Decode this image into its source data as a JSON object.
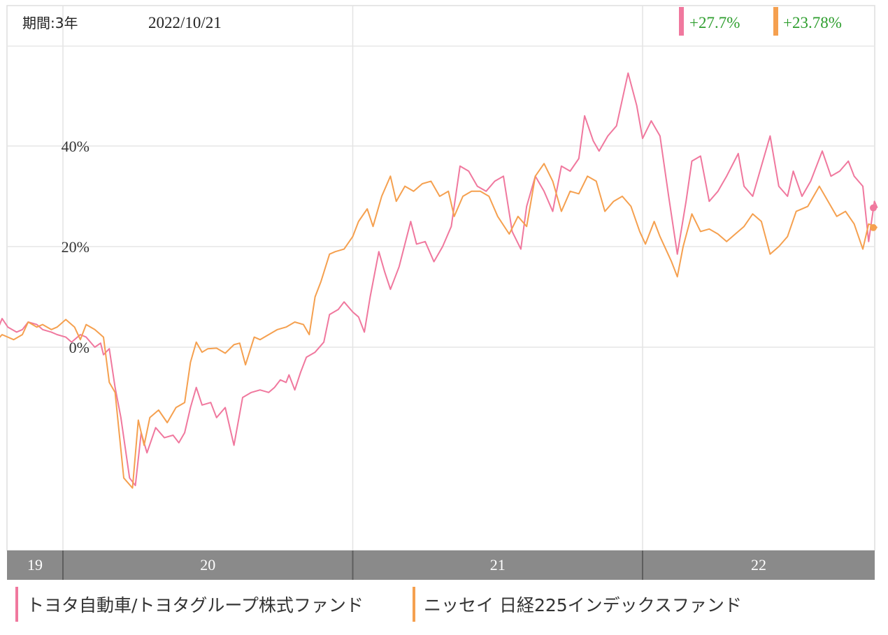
{
  "header": {
    "period_label": "期間:3年",
    "date": "2022/10/21",
    "returns": [
      {
        "value": "+27.7%",
        "color": "#f0789e"
      },
      {
        "value": "+23.78%",
        "color": "#f5a04f"
      }
    ]
  },
  "colors": {
    "series_1": "#f0789e",
    "series_2": "#f5a04f",
    "positive_text": "#2e9e2e",
    "axis_band": "#8a8a8a",
    "grid": "#e6e6e6"
  },
  "chart_data": {
    "type": "line",
    "y_unit": "%",
    "ylim": [
      -45,
      60
    ],
    "y_ticks": [
      {
        "value": 40,
        "label": "40%"
      },
      {
        "value": 20,
        "label": "20%"
      },
      {
        "value": 0,
        "label": "0%"
      }
    ],
    "x_range": [
      2019.75,
      2022.81
    ],
    "x_ticks": [
      {
        "value": 2019.75,
        "label": "19"
      },
      {
        "value": 2020.0,
        "label": "20"
      },
      {
        "value": 2021.0,
        "label": "21"
      },
      {
        "value": 2022.0,
        "label": "22"
      }
    ],
    "grid": true,
    "series": [
      {
        "name": "トヨタ自動車/トヨタグループ株式ファンド",
        "color": "#f0789e",
        "points": [
          [
            2019.75,
            0
          ],
          [
            2019.79,
            5.7
          ],
          [
            2019.81,
            4
          ],
          [
            2019.84,
            3
          ],
          [
            2019.86,
            3.5
          ],
          [
            2019.88,
            5
          ],
          [
            2019.91,
            4.5
          ],
          [
            2019.93,
            3.5
          ],
          [
            2019.96,
            3
          ],
          [
            2019.98,
            2.5
          ],
          [
            2020.01,
            2
          ],
          [
            2020.03,
            1
          ],
          [
            2020.06,
            2.5
          ],
          [
            2020.08,
            2
          ],
          [
            2020.11,
            0
          ],
          [
            2020.13,
            0.8
          ],
          [
            2020.14,
            -1.5
          ],
          [
            2020.16,
            -0.3
          ],
          [
            2020.18,
            -8
          ],
          [
            2020.2,
            -14
          ],
          [
            2020.23,
            -26
          ],
          [
            2020.25,
            -27.5
          ],
          [
            2020.27,
            -17
          ],
          [
            2020.29,
            -21
          ],
          [
            2020.32,
            -16
          ],
          [
            2020.35,
            -18
          ],
          [
            2020.38,
            -17.5
          ],
          [
            2020.4,
            -19
          ],
          [
            2020.42,
            -17
          ],
          [
            2020.44,
            -12
          ],
          [
            2020.46,
            -8
          ],
          [
            2020.48,
            -11.5
          ],
          [
            2020.51,
            -11
          ],
          [
            2020.53,
            -14
          ],
          [
            2020.56,
            -12
          ],
          [
            2020.59,
            -19.5
          ],
          [
            2020.62,
            -10
          ],
          [
            2020.65,
            -9
          ],
          [
            2020.68,
            -8.5
          ],
          [
            2020.71,
            -9
          ],
          [
            2020.73,
            -8
          ],
          [
            2020.75,
            -6.5
          ],
          [
            2020.77,
            -7
          ],
          [
            2020.78,
            -5.5
          ],
          [
            2020.8,
            -8.5
          ],
          [
            2020.82,
            -5
          ],
          [
            2020.84,
            -2
          ],
          [
            2020.87,
            -1
          ],
          [
            2020.9,
            1
          ],
          [
            2020.92,
            6.5
          ],
          [
            2020.95,
            7.5
          ],
          [
            2020.97,
            9
          ],
          [
            2021.0,
            7
          ],
          [
            2021.02,
            6
          ],
          [
            2021.04,
            3
          ],
          [
            2021.06,
            10
          ],
          [
            2021.09,
            19
          ],
          [
            2021.11,
            15
          ],
          [
            2021.13,
            11.5
          ],
          [
            2021.16,
            16
          ],
          [
            2021.2,
            25
          ],
          [
            2021.22,
            20.5
          ],
          [
            2021.25,
            21
          ],
          [
            2021.28,
            17
          ],
          [
            2021.31,
            20
          ],
          [
            2021.34,
            24
          ],
          [
            2021.37,
            36
          ],
          [
            2021.4,
            35
          ],
          [
            2021.43,
            32
          ],
          [
            2021.46,
            31
          ],
          [
            2021.49,
            33
          ],
          [
            2021.52,
            34
          ],
          [
            2021.55,
            23
          ],
          [
            2021.58,
            19.5
          ],
          [
            2021.6,
            28
          ],
          [
            2021.63,
            34
          ],
          [
            2021.66,
            31
          ],
          [
            2021.69,
            27
          ],
          [
            2021.72,
            36
          ],
          [
            2021.75,
            35
          ],
          [
            2021.78,
            37.5
          ],
          [
            2021.8,
            46
          ],
          [
            2021.83,
            41
          ],
          [
            2021.85,
            39
          ],
          [
            2021.88,
            42
          ],
          [
            2021.91,
            44
          ],
          [
            2021.95,
            54.5
          ],
          [
            2021.98,
            48
          ],
          [
            2022.0,
            41.5
          ],
          [
            2022.03,
            45
          ],
          [
            2022.06,
            42
          ],
          [
            2022.09,
            30
          ],
          [
            2022.12,
            18.5
          ],
          [
            2022.15,
            29
          ],
          [
            2022.17,
            37
          ],
          [
            2022.2,
            38
          ],
          [
            2022.23,
            29
          ],
          [
            2022.26,
            31
          ],
          [
            2022.29,
            34
          ],
          [
            2022.33,
            38.5
          ],
          [
            2022.35,
            32
          ],
          [
            2022.38,
            30
          ],
          [
            2022.41,
            36
          ],
          [
            2022.44,
            42
          ],
          [
            2022.47,
            32
          ],
          [
            2022.5,
            30
          ],
          [
            2022.52,
            35
          ],
          [
            2022.55,
            30
          ],
          [
            2022.58,
            33
          ],
          [
            2022.62,
            39
          ],
          [
            2022.65,
            34
          ],
          [
            2022.68,
            35
          ],
          [
            2022.71,
            37
          ],
          [
            2022.73,
            34
          ],
          [
            2022.76,
            32
          ],
          [
            2022.78,
            21
          ],
          [
            2022.8,
            29
          ],
          [
            2022.81,
            27.7
          ]
        ]
      },
      {
        "name": "ニッセイ 日経225インデックスファンド",
        "color": "#f5a04f",
        "points": [
          [
            2019.75,
            0
          ],
          [
            2019.79,
            2.5
          ],
          [
            2019.83,
            1.5
          ],
          [
            2019.86,
            2.5
          ],
          [
            2019.88,
            5
          ],
          [
            2019.91,
            4
          ],
          [
            2019.93,
            4.5
          ],
          [
            2019.96,
            3.5
          ],
          [
            2019.98,
            4
          ],
          [
            2020.01,
            5.5
          ],
          [
            2020.04,
            4
          ],
          [
            2020.06,
            1.5
          ],
          [
            2020.08,
            4.5
          ],
          [
            2020.11,
            3.5
          ],
          [
            2020.14,
            2
          ],
          [
            2020.16,
            -7
          ],
          [
            2020.18,
            -9
          ],
          [
            2020.21,
            -26
          ],
          [
            2020.24,
            -28
          ],
          [
            2020.26,
            -14.5
          ],
          [
            2020.28,
            -19.5
          ],
          [
            2020.3,
            -14
          ],
          [
            2020.33,
            -12.5
          ],
          [
            2020.36,
            -15
          ],
          [
            2020.39,
            -12
          ],
          [
            2020.42,
            -11
          ],
          [
            2020.44,
            -3
          ],
          [
            2020.46,
            1
          ],
          [
            2020.48,
            -1
          ],
          [
            2020.5,
            -0.3
          ],
          [
            2020.53,
            -0.2
          ],
          [
            2020.56,
            -1.2
          ],
          [
            2020.59,
            0.5
          ],
          [
            2020.61,
            0.8
          ],
          [
            2020.63,
            -3.5
          ],
          [
            2020.66,
            2
          ],
          [
            2020.68,
            1.5
          ],
          [
            2020.71,
            2.5
          ],
          [
            2020.74,
            3.5
          ],
          [
            2020.77,
            4
          ],
          [
            2020.8,
            5
          ],
          [
            2020.83,
            4.5
          ],
          [
            2020.85,
            2.5
          ],
          [
            2020.87,
            10
          ],
          [
            2020.89,
            13
          ],
          [
            2020.92,
            18.5
          ],
          [
            2020.94,
            19
          ],
          [
            2020.97,
            19.5
          ],
          [
            2021.0,
            22
          ],
          [
            2021.02,
            25
          ],
          [
            2021.05,
            27.5
          ],
          [
            2021.07,
            24
          ],
          [
            2021.1,
            30
          ],
          [
            2021.13,
            34
          ],
          [
            2021.15,
            29
          ],
          [
            2021.18,
            32
          ],
          [
            2021.21,
            31
          ],
          [
            2021.24,
            32.5
          ],
          [
            2021.27,
            33
          ],
          [
            2021.3,
            30
          ],
          [
            2021.33,
            31
          ],
          [
            2021.35,
            26
          ],
          [
            2021.38,
            30
          ],
          [
            2021.41,
            31
          ],
          [
            2021.44,
            31
          ],
          [
            2021.47,
            30
          ],
          [
            2021.5,
            26
          ],
          [
            2021.54,
            22.5
          ],
          [
            2021.57,
            26
          ],
          [
            2021.6,
            24
          ],
          [
            2021.63,
            34
          ],
          [
            2021.66,
            36.5
          ],
          [
            2021.69,
            33
          ],
          [
            2021.72,
            27
          ],
          [
            2021.75,
            31
          ],
          [
            2021.78,
            30.5
          ],
          [
            2021.81,
            34
          ],
          [
            2021.84,
            33
          ],
          [
            2021.87,
            27
          ],
          [
            2021.9,
            29
          ],
          [
            2021.93,
            30
          ],
          [
            2021.96,
            28
          ],
          [
            2021.99,
            23
          ],
          [
            2022.01,
            20.5
          ],
          [
            2022.04,
            25
          ],
          [
            2022.06,
            22
          ],
          [
            2022.1,
            17
          ],
          [
            2022.12,
            14
          ],
          [
            2022.14,
            20
          ],
          [
            2022.17,
            26.5
          ],
          [
            2022.2,
            23
          ],
          [
            2022.23,
            23.5
          ],
          [
            2022.26,
            22.5
          ],
          [
            2022.29,
            21
          ],
          [
            2022.32,
            22.5
          ],
          [
            2022.35,
            24
          ],
          [
            2022.38,
            26.5
          ],
          [
            2022.41,
            25
          ],
          [
            2022.44,
            18.5
          ],
          [
            2022.47,
            20
          ],
          [
            2022.5,
            22
          ],
          [
            2022.53,
            27
          ],
          [
            2022.57,
            28
          ],
          [
            2022.61,
            32
          ],
          [
            2022.64,
            29
          ],
          [
            2022.67,
            26
          ],
          [
            2022.7,
            27
          ],
          [
            2022.73,
            24.5
          ],
          [
            2022.76,
            19.5
          ],
          [
            2022.78,
            24.5
          ],
          [
            2022.81,
            23.78
          ]
        ]
      }
    ]
  }
}
